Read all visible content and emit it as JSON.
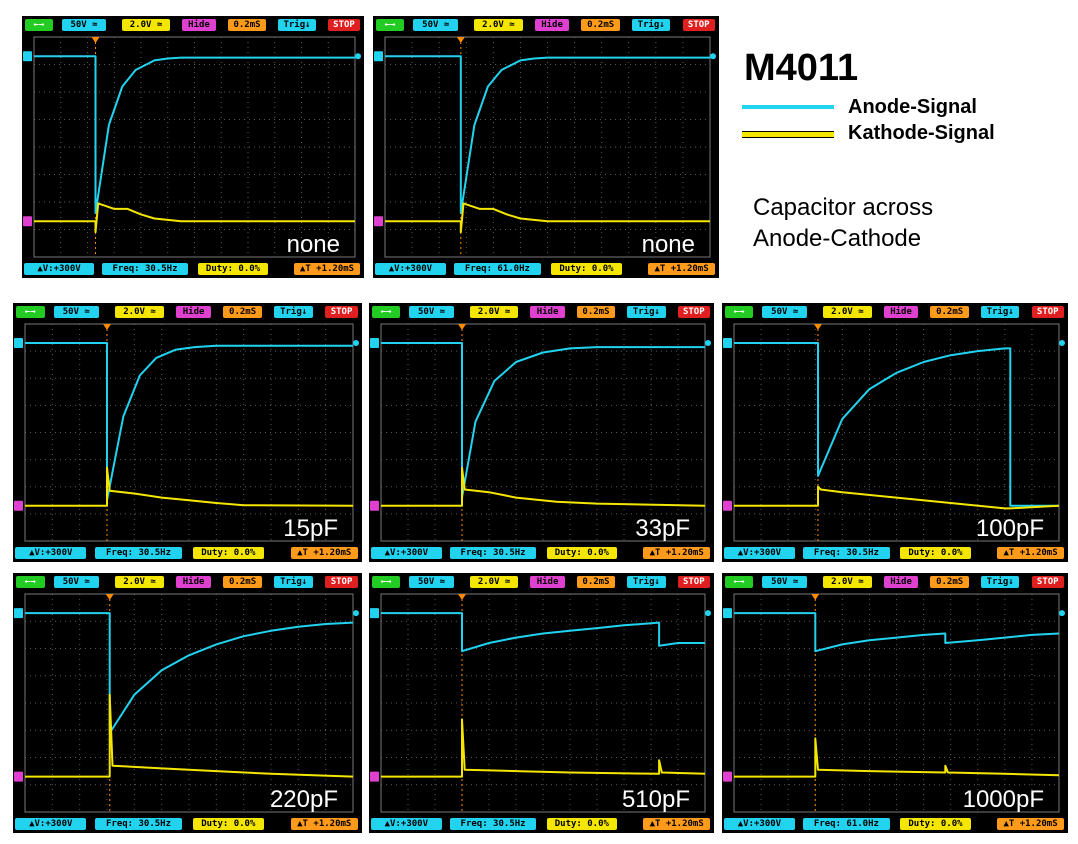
{
  "title": "M4011",
  "legend": [
    {
      "label": "Anode-Signal",
      "color": "#22d3f0"
    },
    {
      "label": "Kathode-Signal",
      "color": "#f5e600"
    }
  ],
  "note": [
    "Capacitor across",
    "Anode-Cathode"
  ],
  "colors": {
    "anode": "#22d3f0",
    "kathode": "#f5e600",
    "grid": "#5a5a5a",
    "trigger": "#ff8c00"
  },
  "common": {
    "ch1_volts": "50V",
    "ch2_volts": "2.0V",
    "hide_label": "Hide",
    "timebase": "0.2mS",
    "trig_label": "Trig↓",
    "stop_label": "STOP",
    "v_label": "▲V:+300V",
    "duty": "Duty: 0.0%",
    "t_label": "▲T +1.20mS"
  },
  "chart_data": [
    {
      "type": "line",
      "capacitor": "none",
      "freq": "Freq: 30.5Hz",
      "x_divisions": 12,
      "y_divisions": 8,
      "series": [
        {
          "name": "Anode-Signal",
          "x": [
            0,
            2.3,
            2.3,
            2.8,
            3.3,
            3.8,
            4.5,
            5,
            5.5,
            12
          ],
          "y": [
            7.3,
            7.3,
            1.6,
            4.8,
            6.2,
            6.8,
            7.15,
            7.22,
            7.25,
            7.25
          ]
        },
        {
          "name": "Kathode-Signal",
          "x": [
            0,
            2.3,
            2.3,
            2.4,
            3,
            3.5,
            4,
            4.5,
            5.5,
            12
          ],
          "y": [
            1.3,
            1.3,
            0.9,
            1.95,
            1.75,
            1.75,
            1.55,
            1.4,
            1.3,
            1.3
          ]
        }
      ]
    },
    {
      "type": "line",
      "capacitor": "none",
      "freq": "Freq: 61.0Hz",
      "x_divisions": 12,
      "y_divisions": 8,
      "series": [
        {
          "name": "Anode-Signal",
          "x": [
            0,
            2.8,
            2.8,
            3.3,
            3.8,
            4.3,
            5,
            5.5,
            6,
            12
          ],
          "y": [
            7.3,
            7.3,
            1.6,
            4.8,
            6.2,
            6.8,
            7.15,
            7.22,
            7.25,
            7.25
          ]
        },
        {
          "name": "Kathode-Signal",
          "x": [
            0,
            2.8,
            2.8,
            2.9,
            3.5,
            4,
            4.5,
            5,
            6,
            12
          ],
          "y": [
            1.3,
            1.3,
            0.9,
            1.95,
            1.75,
            1.75,
            1.55,
            1.4,
            1.3,
            1.3
          ]
        }
      ]
    },
    {
      "type": "line",
      "capacitor": "15pF",
      "freq": "Freq: 30.5Hz",
      "x_divisions": 12,
      "y_divisions": 8,
      "series": [
        {
          "name": "Anode-Signal",
          "x": [
            0,
            3,
            3,
            3.6,
            4.2,
            4.8,
            5.5,
            6.2,
            7,
            12
          ],
          "y": [
            7.3,
            7.3,
            1.5,
            4.6,
            6.1,
            6.75,
            7.05,
            7.15,
            7.2,
            7.2
          ]
        },
        {
          "name": "Kathode-Signal",
          "x": [
            0,
            3,
            3,
            3.1,
            4,
            5,
            6,
            7,
            8,
            12
          ],
          "y": [
            1.3,
            1.3,
            2.7,
            1.85,
            1.75,
            1.6,
            1.5,
            1.4,
            1.32,
            1.3
          ]
        }
      ]
    },
    {
      "type": "line",
      "capacitor": "33pF",
      "freq": "Freq: 30.5Hz",
      "x_divisions": 12,
      "y_divisions": 8,
      "series": [
        {
          "name": "Anode-Signal",
          "x": [
            0,
            3,
            3,
            3.5,
            4.2,
            5,
            6,
            7,
            8,
            12
          ],
          "y": [
            7.3,
            7.3,
            1.6,
            4.4,
            5.9,
            6.6,
            6.95,
            7.1,
            7.15,
            7.15
          ]
        },
        {
          "name": "Kathode-Signal",
          "x": [
            0,
            3,
            3,
            3.1,
            4,
            5,
            6.5,
            8,
            12
          ],
          "y": [
            1.3,
            1.3,
            2.7,
            1.9,
            1.8,
            1.6,
            1.45,
            1.38,
            1.3
          ]
        }
      ]
    },
    {
      "type": "line",
      "capacitor": "100pF",
      "freq": "Freq: 30.5Hz",
      "x_divisions": 12,
      "y_divisions": 8,
      "series": [
        {
          "name": "Anode-Signal",
          "x": [
            0,
            3.1,
            3.1,
            4,
            5,
            6,
            7,
            8,
            9,
            10,
            10.2,
            10.2,
            12
          ],
          "y": [
            7.3,
            7.3,
            2.4,
            4.5,
            5.6,
            6.2,
            6.6,
            6.85,
            7.0,
            7.1,
            7.1,
            1.3,
            1.3
          ]
        },
        {
          "name": "Kathode-Signal",
          "x": [
            0,
            3.1,
            3.1,
            3.2,
            4,
            6,
            8,
            10,
            10.2,
            12
          ],
          "y": [
            1.3,
            1.3,
            2.0,
            1.9,
            1.8,
            1.6,
            1.4,
            1.2,
            1.2,
            1.3
          ]
        }
      ]
    },
    {
      "type": "line",
      "capacitor": "220pF",
      "freq": "Freq: 30.5Hz",
      "x_divisions": 12,
      "y_divisions": 8,
      "series": [
        {
          "name": "Anode-Signal",
          "x": [
            0,
            3.1,
            3.1,
            4,
            5,
            6,
            7,
            8,
            9,
            10,
            11,
            12
          ],
          "y": [
            7.3,
            7.3,
            2.9,
            4.3,
            5.2,
            5.75,
            6.15,
            6.45,
            6.65,
            6.8,
            6.9,
            6.95
          ]
        },
        {
          "name": "Kathode-Signal",
          "x": [
            0,
            3.1,
            3.1,
            3.2,
            5,
            7,
            9,
            12
          ],
          "y": [
            1.3,
            1.3,
            4.3,
            1.7,
            1.6,
            1.5,
            1.4,
            1.3
          ]
        }
      ]
    },
    {
      "type": "line",
      "capacitor": "510pF",
      "freq": "Freq: 30.5Hz",
      "x_divisions": 12,
      "y_divisions": 8,
      "series": [
        {
          "name": "Anode-Signal",
          "x": [
            0,
            3,
            3,
            4,
            5,
            6,
            7,
            8,
            9,
            10.3,
            10.3,
            11,
            12
          ],
          "y": [
            7.3,
            7.3,
            5.9,
            6.2,
            6.4,
            6.55,
            6.65,
            6.75,
            6.85,
            6.95,
            6.1,
            6.2,
            6.2
          ]
        },
        {
          "name": "Kathode-Signal",
          "x": [
            0,
            3,
            3,
            3.1,
            5,
            7,
            10.3,
            10.3,
            10.4,
            12
          ],
          "y": [
            1.3,
            1.3,
            3.4,
            1.55,
            1.5,
            1.45,
            1.4,
            1.9,
            1.45,
            1.4
          ]
        }
      ]
    },
    {
      "type": "line",
      "capacitor": "1000pF",
      "freq": "Freq: 61.0Hz",
      "x_divisions": 12,
      "y_divisions": 8,
      "series": [
        {
          "name": "Anode-Signal",
          "x": [
            0,
            3,
            3,
            4,
            5,
            6,
            7,
            7.8,
            7.8,
            9,
            10,
            11,
            12
          ],
          "y": [
            7.3,
            7.3,
            5.9,
            6.15,
            6.3,
            6.4,
            6.5,
            6.55,
            6.2,
            6.3,
            6.4,
            6.5,
            6.55
          ]
        },
        {
          "name": "Kathode-Signal",
          "x": [
            0,
            3,
            3,
            3.1,
            5,
            7.8,
            7.8,
            7.9,
            10,
            12
          ],
          "y": [
            1.3,
            1.3,
            2.7,
            1.55,
            1.5,
            1.45,
            1.7,
            1.45,
            1.4,
            1.35
          ]
        }
      ]
    }
  ]
}
